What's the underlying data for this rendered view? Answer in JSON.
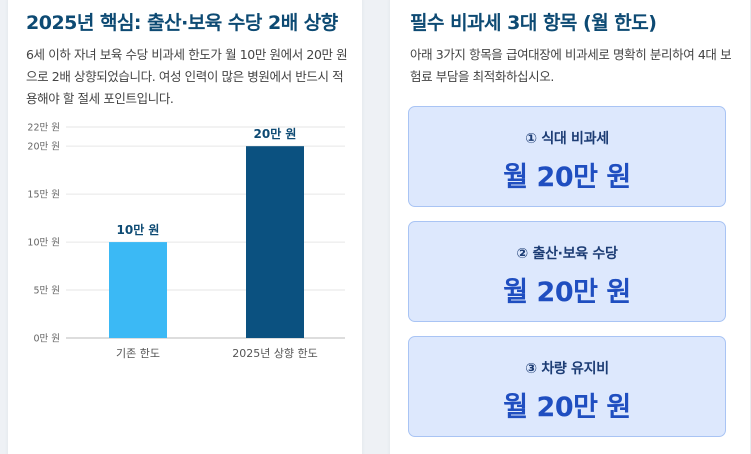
{
  "left": {
    "title": "2025년 핵심: 출산·보육 수당 2배 상향",
    "description": "6세 이하 자녀 보육 수당 비과세 한도가 월 10만 원에서 20만 원으로 2배 상향되었습니다. 여성 인력이 많은 병원에서 반드시 적용해야 할 절세 포인트입니다."
  },
  "right": {
    "title": "필수 비과세 3대 항목 (월 한도)",
    "description": "아래 3가지 항목을 급여대장에 비과세로 명확히 분리하여 4대 보험료 부담을 최적화하십시오.",
    "items": [
      {
        "label": "① 식대 비과세",
        "value": "월 20만 원"
      },
      {
        "label": "② 출산·보육 수당",
        "value": "월 20만 원"
      },
      {
        "label": "③ 차량 유지비",
        "value": "월 20만 원"
      }
    ]
  },
  "chart_data": {
    "type": "bar",
    "categories": [
      "기존 한도",
      "2025년 상향 한도"
    ],
    "values": [
      10,
      20
    ],
    "data_labels": [
      "10만 원",
      "20만 원"
    ],
    "bar_colors": [
      "#3bb9f5",
      "#0b5180"
    ],
    "ylim": [
      0,
      22
    ],
    "yticks": [
      {
        "value": 0,
        "label": "0만 원"
      },
      {
        "value": 5,
        "label": "5만 원"
      },
      {
        "value": 10,
        "label": "10만 원"
      },
      {
        "value": 15,
        "label": "15만 원"
      },
      {
        "value": 20,
        "label": "20만 원"
      },
      {
        "value": 22,
        "label": "22만 원"
      }
    ],
    "grid": true,
    "legend": "none"
  }
}
